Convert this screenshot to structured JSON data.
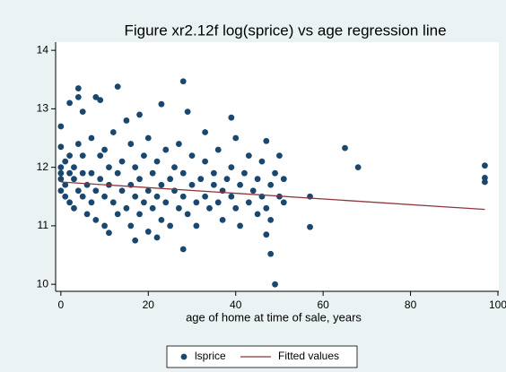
{
  "chart_data": {
    "type": "scatter",
    "title": "Figure xr2.12f log(sprice) vs age regression line",
    "x_label": "age of home at time of sale, years",
    "xlim": [
      -1.2,
      100.2
    ],
    "ylim": [
      9.88,
      14.14
    ],
    "xticks": [
      0,
      20,
      40,
      60,
      80,
      100
    ],
    "yticks": [
      10,
      11,
      12,
      13,
      14
    ],
    "series": [
      {
        "name": "lsprice",
        "type": "scatter",
        "color": "#1a476f",
        "x": [
          0,
          0,
          2,
          4,
          4,
          5,
          8,
          9,
          13,
          28,
          23,
          29,
          39,
          33,
          47,
          65,
          68,
          97,
          97,
          97,
          57,
          57,
          49,
          48,
          28,
          47,
          17,
          11,
          22,
          0,
          0,
          0,
          0,
          1,
          1,
          1,
          2,
          2,
          2,
          3,
          3,
          3,
          4,
          4,
          5,
          5,
          5,
          6,
          6,
          7,
          7,
          7,
          8,
          8,
          9,
          9,
          10,
          10,
          10,
          11,
          11,
          12,
          12,
          13,
          13,
          14,
          14,
          15,
          15,
          16,
          16,
          16,
          17,
          17,
          18,
          18,
          18,
          19,
          19,
          20,
          20,
          20,
          21,
          21,
          22,
          22,
          23,
          23,
          24,
          24,
          25,
          25,
          26,
          26,
          27,
          27,
          28,
          28,
          29,
          30,
          30,
          31,
          31,
          32,
          33,
          33,
          34,
          35,
          35,
          36,
          36,
          37,
          37,
          38,
          39,
          39,
          40,
          40,
          41,
          41,
          42,
          43,
          43,
          44,
          45,
          45,
          46,
          46,
          47,
          48,
          48,
          49,
          50,
          50,
          51,
          51
        ],
        "y": [
          12.7,
          12.35,
          13.1,
          13.35,
          13.2,
          12.95,
          13.2,
          13.15,
          13.38,
          13.47,
          13.08,
          12.95,
          12.85,
          12.6,
          12.45,
          12.33,
          12.0,
          12.03,
          11.82,
          11.75,
          11.5,
          10.98,
          10.0,
          10.52,
          10.6,
          10.85,
          10.75,
          10.88,
          10.8,
          11.8,
          11.6,
          12.0,
          11.9,
          11.7,
          12.1,
          11.5,
          11.9,
          11.4,
          12.2,
          11.8,
          11.3,
          12.0,
          11.6,
          12.4,
          11.5,
          11.9,
          12.2,
          11.7,
          11.2,
          11.9,
          11.4,
          12.5,
          11.6,
          11.1,
          11.8,
          12.2,
          11.5,
          11.0,
          12.3,
          11.7,
          12.0,
          11.4,
          12.6,
          11.9,
          11.2,
          11.6,
          12.1,
          11.3,
          12.8,
          11.7,
          11.0,
          12.4,
          11.5,
          12.0,
          11.8,
          11.2,
          12.9,
          11.4,
          12.2,
          11.6,
          10.9,
          12.5,
          11.9,
          11.3,
          11.5,
          12.1,
          11.7,
          11.1,
          11.4,
          12.3,
          11.8,
          11.0,
          11.6,
          12.0,
          11.3,
          12.4,
          11.5,
          11.9,
          11.2,
          11.7,
          12.2,
          11.4,
          11.0,
          11.8,
          11.5,
          12.1,
          11.3,
          11.7,
          11.9,
          11.4,
          12.3,
          11.6,
          11.1,
          11.8,
          11.5,
          12.0,
          11.3,
          12.5,
          11.7,
          11.0,
          11.9,
          11.4,
          12.2,
          11.6,
          11.8,
          11.2,
          11.5,
          12.1,
          11.3,
          11.7,
          11.1,
          11.9,
          11.5,
          12.2,
          11.4,
          11.8
        ]
      },
      {
        "name": "Fitted values",
        "type": "line",
        "color": "#90353b",
        "x": [
          0,
          97
        ],
        "y": [
          11.75,
          11.28
        ]
      }
    ]
  }
}
